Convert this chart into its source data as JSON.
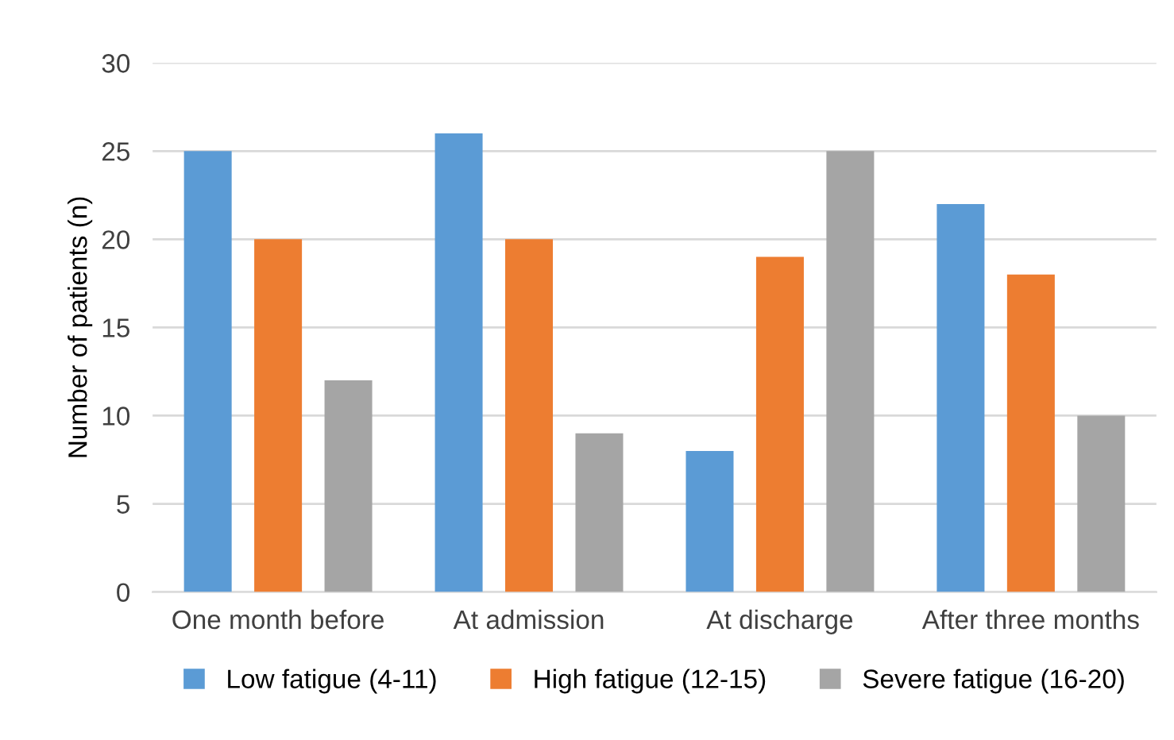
{
  "chart_data": {
    "type": "bar",
    "ylabel": "Number of patients (n)",
    "categories": [
      "One month before",
      "At admission",
      "At discharge",
      "After three months"
    ],
    "series": [
      {
        "name": "Low fatigue (4-11)",
        "color": "#5b9bd5",
        "values": [
          25,
          26,
          8,
          22
        ]
      },
      {
        "name": "High fatigue (12-15)",
        "color": "#ed7d31",
        "values": [
          20,
          20,
          19,
          18
        ]
      },
      {
        "name": "Severe fatigue (16-20)",
        "color": "#a5a5a5",
        "values": [
          12,
          9,
          25,
          10
        ]
      }
    ],
    "ylim": [
      0,
      30
    ],
    "yticks": [
      0,
      5,
      10,
      15,
      20,
      25,
      30
    ],
    "grid": "y",
    "legend": "bottom"
  }
}
